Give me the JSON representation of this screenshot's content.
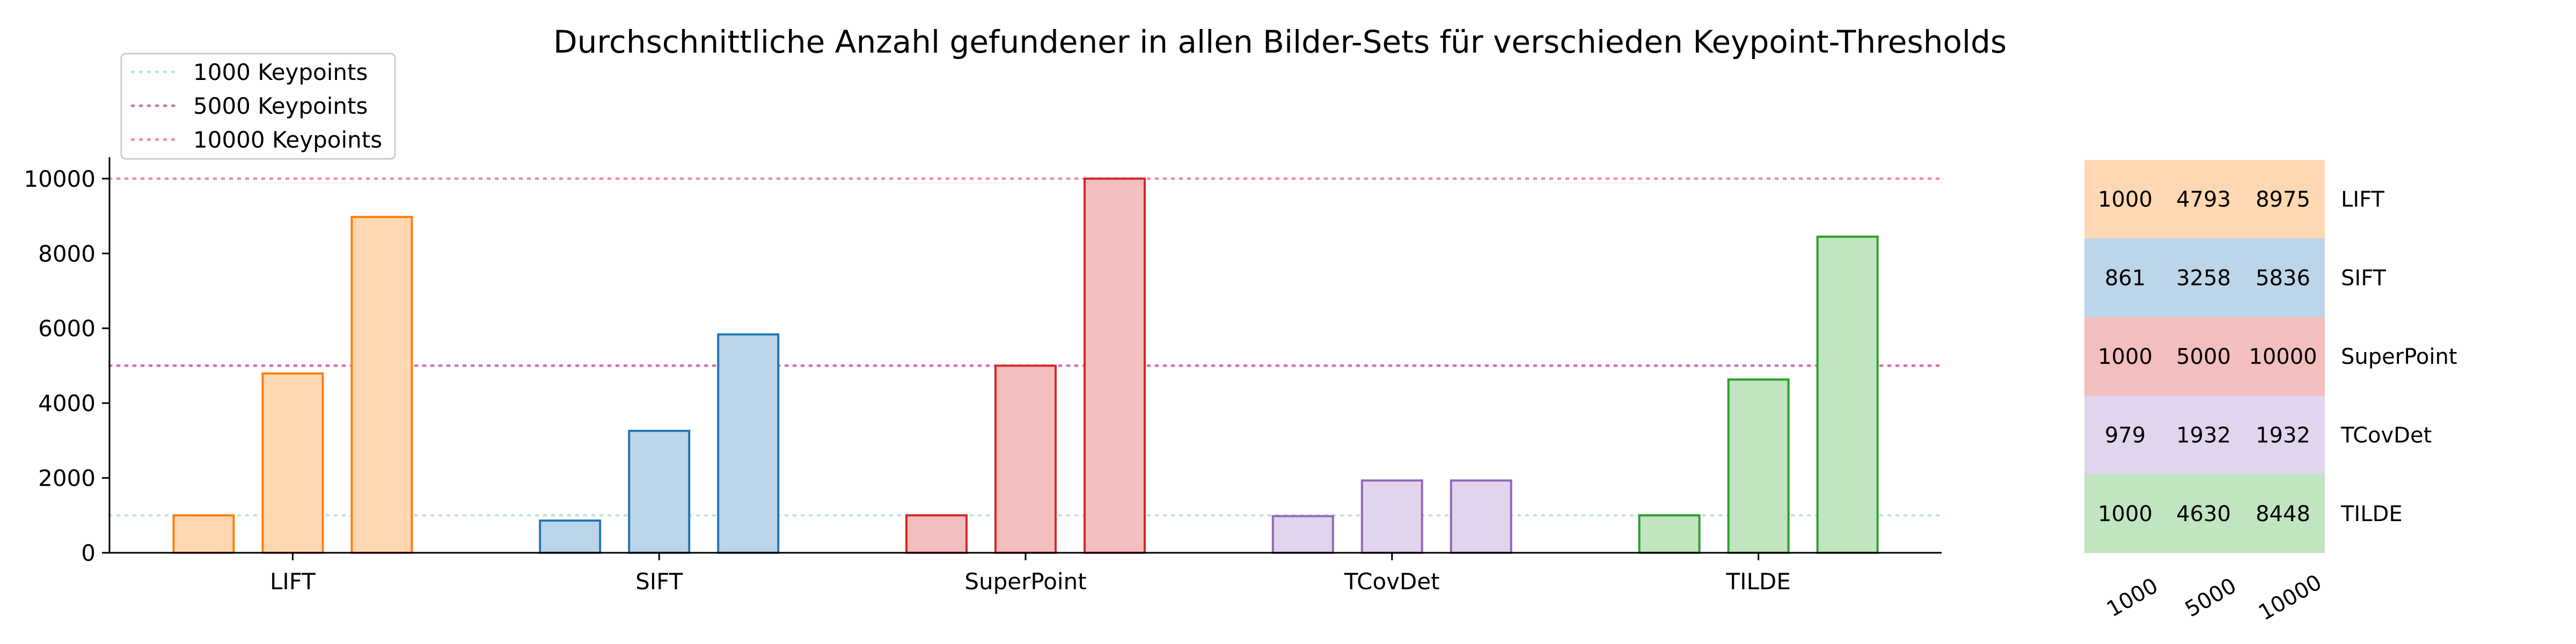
{
  "chart_data": {
    "type": "bar",
    "title": "Durchschnittliche Anzahl gefundener in allen Bilder-Sets für verschieden Keypoint-Thresholds",
    "xlabel": "",
    "ylabel": "",
    "categories": [
      "LIFT",
      "SIFT",
      "SuperPoint",
      "TCovDet",
      "TILDE"
    ],
    "series": [
      {
        "name": "1000",
        "values": [
          1000,
          861,
          1000,
          979,
          1000
        ]
      },
      {
        "name": "5000",
        "values": [
          4793,
          3258,
          5000,
          1932,
          4630
        ]
      },
      {
        "name": "10000",
        "values": [
          8975,
          5836,
          10000,
          1932,
          8448
        ]
      }
    ],
    "ylim": [
      0,
      10500
    ],
    "yticks": [
      0,
      2000,
      4000,
      6000,
      8000,
      10000
    ],
    "grid": false,
    "category_colors": {
      "LIFT": {
        "edge": "#ff7f0e",
        "fill": "#ffd8b3"
      },
      "SIFT": {
        "edge": "#1f77b4",
        "fill": "#bcd5e9"
      },
      "SuperPoint": {
        "edge": "#d62728",
        "fill": "#f3bebe"
      },
      "TCovDet": {
        "edge": "#9467bd",
        "fill": "#e1d4ed"
      },
      "TILDE": {
        "edge": "#2ca02c",
        "fill": "#c1e4c1"
      }
    },
    "reference_lines": [
      {
        "label": "1000 Keypoints",
        "value": 1000,
        "color": "#c5e3dc"
      },
      {
        "label": "5000 Keypoints",
        "value": 5000,
        "color": "#d874b4"
      },
      {
        "label": "10000 Keypoints",
        "value": 10000,
        "color": "#f090a8"
      }
    ],
    "legend_position": "top-left",
    "table": {
      "column_labels": [
        "1000",
        "5000",
        "10000"
      ],
      "rows": [
        {
          "label": "LIFT",
          "values": [
            "1000",
            "4793",
            "8975"
          ],
          "color": "#ffd8b3"
        },
        {
          "label": "SIFT",
          "values": [
            "861",
            "3258",
            "5836"
          ],
          "color": "#bcd5e9"
        },
        {
          "label": "SuperPoint",
          "values": [
            "1000",
            "5000",
            "10000"
          ],
          "color": "#f3bebe"
        },
        {
          "label": "TCovDet",
          "values": [
            "979",
            "1932",
            "1932"
          ],
          "color": "#e1d4ed"
        },
        {
          "label": "TILDE",
          "values": [
            "1000",
            "4630",
            "8448"
          ],
          "color": "#c1e4c1"
        }
      ]
    }
  }
}
